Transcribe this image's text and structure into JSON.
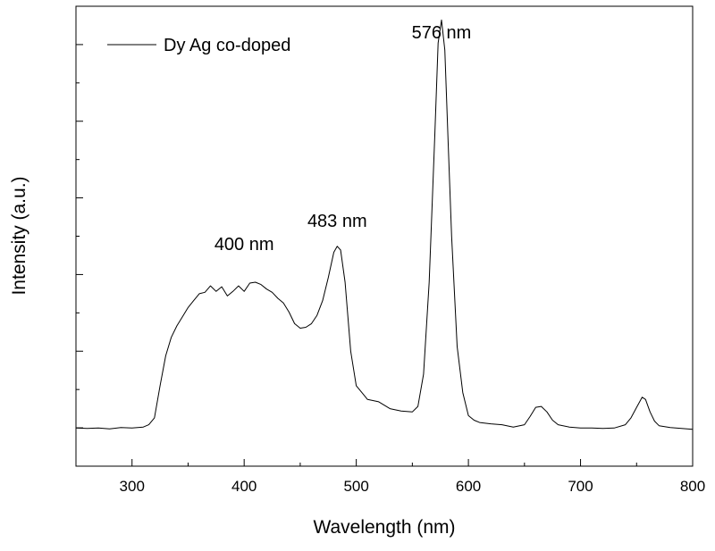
{
  "chart_data": {
    "type": "line",
    "xlabel": "Wavelength (nm)",
    "ylabel": "Intensity (a.u.)",
    "xlim": [
      250,
      800
    ],
    "ylim": [
      0,
      1.0
    ],
    "x_ticks": [
      300,
      400,
      500,
      600,
      700,
      800
    ],
    "x_tick_labels": [
      "300",
      "400",
      "500",
      "600",
      "700",
      "800"
    ],
    "y_tick_labels_shown": false,
    "grid": false,
    "legend": {
      "position": "top-left",
      "entries": [
        "Dy Ag co-doped"
      ]
    },
    "series": [
      {
        "name": "Dy Ag co-doped",
        "color": "#000000",
        "x": [
          250,
          260,
          270,
          280,
          290,
          300,
          310,
          315,
          320,
          325,
          330,
          335,
          340,
          345,
          350,
          355,
          360,
          365,
          370,
          375,
          380,
          385,
          390,
          395,
          400,
          405,
          410,
          415,
          420,
          425,
          430,
          435,
          440,
          445,
          450,
          455,
          460,
          465,
          470,
          475,
          480,
          483,
          486,
          490,
          495,
          500,
          505,
          510,
          520,
          530,
          540,
          550,
          555,
          560,
          565,
          570,
          573,
          576,
          579,
          582,
          585,
          590,
          595,
          600,
          605,
          610,
          620,
          630,
          640,
          650,
          655,
          660,
          665,
          670,
          675,
          680,
          690,
          700,
          710,
          720,
          730,
          740,
          745,
          750,
          755,
          758,
          762,
          766,
          770,
          780,
          790,
          800
        ],
        "y": [
          0.083,
          0.082,
          0.083,
          0.081,
          0.084,
          0.083,
          0.085,
          0.09,
          0.105,
          0.175,
          0.24,
          0.28,
          0.305,
          0.325,
          0.345,
          0.36,
          0.375,
          0.378,
          0.392,
          0.38,
          0.39,
          0.37,
          0.38,
          0.392,
          0.38,
          0.398,
          0.4,
          0.395,
          0.385,
          0.378,
          0.365,
          0.355,
          0.335,
          0.31,
          0.3,
          0.302,
          0.31,
          0.328,
          0.36,
          0.41,
          0.465,
          0.478,
          0.47,
          0.4,
          0.25,
          0.175,
          0.16,
          0.145,
          0.14,
          0.125,
          0.12,
          0.118,
          0.13,
          0.2,
          0.4,
          0.72,
          0.92,
          0.97,
          0.905,
          0.7,
          0.5,
          0.26,
          0.16,
          0.11,
          0.1,
          0.095,
          0.092,
          0.09,
          0.085,
          0.09,
          0.108,
          0.128,
          0.13,
          0.118,
          0.1,
          0.09,
          0.085,
          0.083,
          0.083,
          0.082,
          0.083,
          0.09,
          0.105,
          0.128,
          0.15,
          0.145,
          0.118,
          0.098,
          0.088,
          0.084,
          0.082,
          0.08
        ]
      }
    ],
    "annotations": [
      {
        "text": "400 nm",
        "x": 400,
        "y": 0.47
      },
      {
        "text": "483 nm",
        "x": 483,
        "y": 0.52
      },
      {
        "text": "576 nm",
        "x": 576,
        "y": 0.93
      }
    ]
  }
}
